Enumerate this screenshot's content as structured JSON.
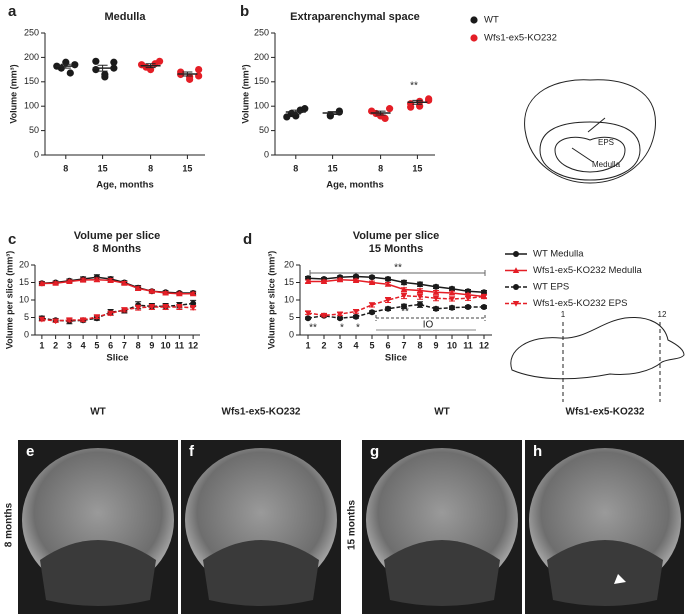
{
  "chart_data": [
    {
      "type": "dotplot",
      "panel": "a",
      "title": "Medulla",
      "xlabel": "Age, months",
      "ylabel": "Volume (mm³)",
      "categories": [
        "8",
        "15",
        "8",
        "15"
      ],
      "ylim": [
        0,
        250
      ],
      "yticks": [
        0,
        50,
        100,
        150,
        200,
        250
      ],
      "series": [
        {
          "color": "#1a1a1a",
          "points": [
            [
              185,
              178,
              190,
              168,
              182
            ],
            [
              190,
              175,
              165,
              160,
              192,
              178
            ],
            null,
            null
          ],
          "means": [
            182,
            178,
            null,
            null
          ],
          "errors": [
            4,
            6,
            null,
            null
          ]
        },
        {
          "color": "#e41e26",
          "points": [
            null,
            null,
            [
              192,
              180,
              175,
              187,
              185
            ],
            [
              175,
              165,
              160,
              155,
              170,
              162
            ]
          ],
          "means": [
            null,
            null,
            183,
            166
          ],
          "errors": [
            null,
            null,
            4,
            4
          ]
        }
      ]
    },
    {
      "type": "dotplot",
      "panel": "b",
      "title": "Extraparenchymal space",
      "xlabel": "Age, months",
      "ylabel": "Volume (mm³)",
      "categories": [
        "8",
        "15",
        "8",
        "15"
      ],
      "ylim": [
        0,
        250
      ],
      "yticks": [
        0,
        50,
        100,
        150,
        200,
        250
      ],
      "annotations": [
        "**"
      ],
      "series": [
        {
          "name": "WT",
          "color": "#1a1a1a",
          "points": [
            [
              95,
              85,
              80,
              92,
              78
            ],
            [
              90,
              82,
              80,
              88
            ],
            null,
            null
          ],
          "means": [
            88,
            86,
            null,
            null
          ],
          "errors": [
            4,
            3,
            null,
            null
          ]
        },
        {
          "name": "Wfs1-ex5-KO232",
          "color": "#e41e26",
          "points": [
            null,
            null,
            [
              95,
              85,
              80,
              75,
              90
            ],
            [
              115,
              105,
              100,
              110,
              98,
              112
            ]
          ],
          "means": [
            null,
            null,
            86,
            108
          ],
          "errors": [
            null,
            null,
            4,
            4
          ]
        }
      ]
    },
    {
      "type": "line",
      "panel": "c",
      "title": "Volume per slice",
      "subtitle": "8 Months",
      "xlabel": "Slice",
      "ylabel": "Volume per slice (mm³)",
      "x": [
        1,
        2,
        3,
        4,
        5,
        6,
        7,
        8,
        9,
        10,
        11,
        12
      ],
      "xlim": [
        0.5,
        12.5
      ],
      "xticks": [
        1,
        2,
        3,
        4,
        5,
        6,
        7,
        8,
        9,
        10,
        11,
        12
      ],
      "ylim": [
        0,
        20
      ],
      "yticks": [
        0,
        5,
        10,
        15,
        20
      ],
      "series": [
        {
          "color": "#1a1a1a",
          "marker": "circle",
          "dashed": false,
          "values": [
            14.8,
            15,
            15.5,
            16,
            16.5,
            16,
            15,
            13.5,
            12.5,
            12.2,
            12,
            12
          ],
          "errors": [
            0.5,
            0.4,
            0.5,
            0.6,
            0.7,
            0.6,
            0.5,
            0.6,
            0.5,
            0.4,
            0.4,
            0.5
          ]
        },
        {
          "color": "#e41e26",
          "marker": "triangle",
          "dashed": false,
          "values": [
            14.7,
            14.8,
            15.3,
            15.7,
            15.8,
            15.6,
            14.8,
            13.3,
            12.5,
            12,
            11.8,
            11.8
          ],
          "errors": [
            0.4,
            0.4,
            0.4,
            0.5,
            0.5,
            0.5,
            0.5,
            0.5,
            0.4,
            0.4,
            0.4,
            0.4
          ]
        },
        {
          "color": "#1a1a1a",
          "marker": "circle",
          "dashed": true,
          "values": [
            4.8,
            4.2,
            4,
            4.2,
            4.8,
            6.5,
            7,
            8.5,
            8.2,
            8.2,
            8.5,
            9
          ],
          "errors": [
            0.6,
            0.5,
            0.8,
            0.5,
            0.6,
            0.8,
            0.7,
            1,
            0.8,
            0.8,
            0.8,
            0.9
          ]
        },
        {
          "color": "#e41e26",
          "marker": "triangle-down",
          "dashed": true,
          "values": [
            4.5,
            4,
            4.3,
            4.3,
            5.2,
            6.2,
            7.2,
            7.8,
            8,
            8,
            8,
            7.8
          ],
          "errors": [
            0.5,
            0.4,
            0.5,
            0.4,
            0.5,
            0.6,
            0.6,
            0.7,
            0.7,
            0.7,
            0.7,
            0.6
          ]
        }
      ]
    },
    {
      "type": "line",
      "panel": "d",
      "title": "Volume per slice",
      "subtitle": "15 Months",
      "xlabel": "Slice",
      "ylabel": "Volume per slice (mm³)",
      "x": [
        1,
        2,
        3,
        4,
        5,
        6,
        7,
        8,
        9,
        10,
        11,
        12
      ],
      "xlim": [
        0.5,
        12.5
      ],
      "xticks": [
        1,
        2,
        3,
        4,
        5,
        6,
        7,
        8,
        9,
        10,
        11,
        12
      ],
      "ylim": [
        0,
        20
      ],
      "yticks": [
        0,
        5,
        10,
        15,
        20
      ],
      "annotations": [
        "**",
        "**",
        "IO",
        "**",
        "*",
        "*"
      ],
      "series": [
        {
          "name": "WT Medulla",
          "color": "#1a1a1a",
          "marker": "circle",
          "dashed": false,
          "values": [
            16.2,
            16,
            16.5,
            16.7,
            16.5,
            16,
            15,
            14.5,
            13.8,
            13.2,
            12.5,
            12.2
          ],
          "errors": [
            0.5,
            0.4,
            0.4,
            0.4,
            0.4,
            0.5,
            0.6,
            0.6,
            0.5,
            0.5,
            0.5,
            0.5
          ]
        },
        {
          "name": "Wfs1-ex5-KO232 Medulla",
          "color": "#e41e26",
          "marker": "triangle",
          "dashed": false,
          "values": [
            15.3,
            15.3,
            15.8,
            15.6,
            15,
            14.5,
            13,
            12.7,
            12.2,
            12,
            11.5,
            11
          ],
          "errors": [
            0.4,
            0.4,
            0.4,
            0.4,
            0.4,
            0.5,
            0.5,
            0.5,
            0.5,
            0.5,
            0.4,
            0.4
          ]
        },
        {
          "name": "WT EPS",
          "color": "#1a1a1a",
          "marker": "circle",
          "dashed": true,
          "values": [
            4.8,
            5.5,
            4.8,
            5.2,
            6.5,
            7.5,
            8.2,
            8.7,
            7.5,
            7.8,
            8,
            8
          ],
          "errors": [
            0.3,
            0.4,
            0.3,
            0.4,
            0.4,
            0.5,
            0.6,
            0.8,
            0.5,
            0.5,
            0.4,
            0.4
          ]
        },
        {
          "name": "Wfs1-ex5-KO232 EPS",
          "color": "#e41e26",
          "marker": "triangle-down",
          "dashed": true,
          "values": [
            6.3,
            5.6,
            6,
            6.7,
            8.6,
            10,
            11.2,
            11,
            10.5,
            10.3,
            10.5,
            11
          ],
          "errors": [
            0.4,
            0.4,
            0.4,
            0.5,
            0.6,
            0.7,
            0.8,
            0.8,
            0.7,
            0.6,
            0.6,
            0.6
          ]
        }
      ]
    }
  ],
  "diagrams": {
    "brain_labels": [
      "EPS",
      "Medulla"
    ],
    "slice_labels": [
      "1",
      "12"
    ]
  },
  "images": {
    "columns": [
      "WT",
      "Wfs1-ex5-KO232",
      "WT",
      "Wfs1-ex5-KO232"
    ],
    "rows": [
      "8 months",
      "15 months"
    ],
    "panels": [
      "e",
      "f",
      "g",
      "h"
    ]
  }
}
